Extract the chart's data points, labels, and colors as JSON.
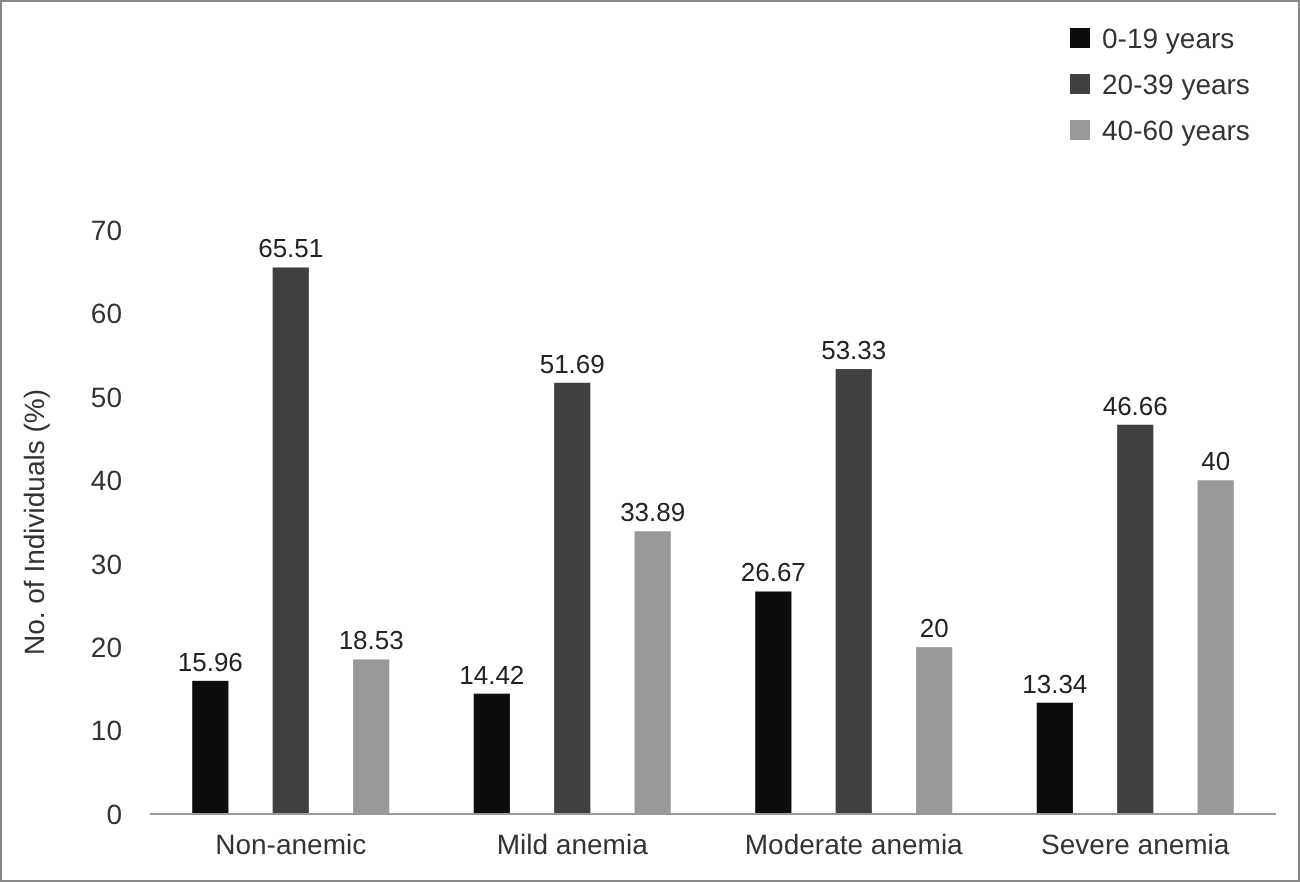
{
  "chart_data": {
    "type": "bar",
    "ylabel": "No. of Individuals (%)",
    "categories": [
      "Non-anemic",
      "Mild anemia",
      "Moderate anemia",
      "Severe anemia"
    ],
    "series": [
      {
        "name": "0-19 years",
        "color": "#0d0d0d",
        "values": [
          15.96,
          14.42,
          26.67,
          13.34
        ]
      },
      {
        "name": "20-39 years",
        "color": "#404040",
        "values": [
          65.51,
          51.69,
          53.33,
          46.66
        ]
      },
      {
        "name": "40-60 years",
        "color": "#999999",
        "values": [
          18.53,
          33.89,
          20,
          40
        ]
      }
    ],
    "ylim": [
      0,
      70
    ],
    "yticks": [
      0,
      10,
      20,
      30,
      40,
      50,
      60,
      70
    ],
    "data_labels": true,
    "legend": "top right",
    "grid": false
  }
}
